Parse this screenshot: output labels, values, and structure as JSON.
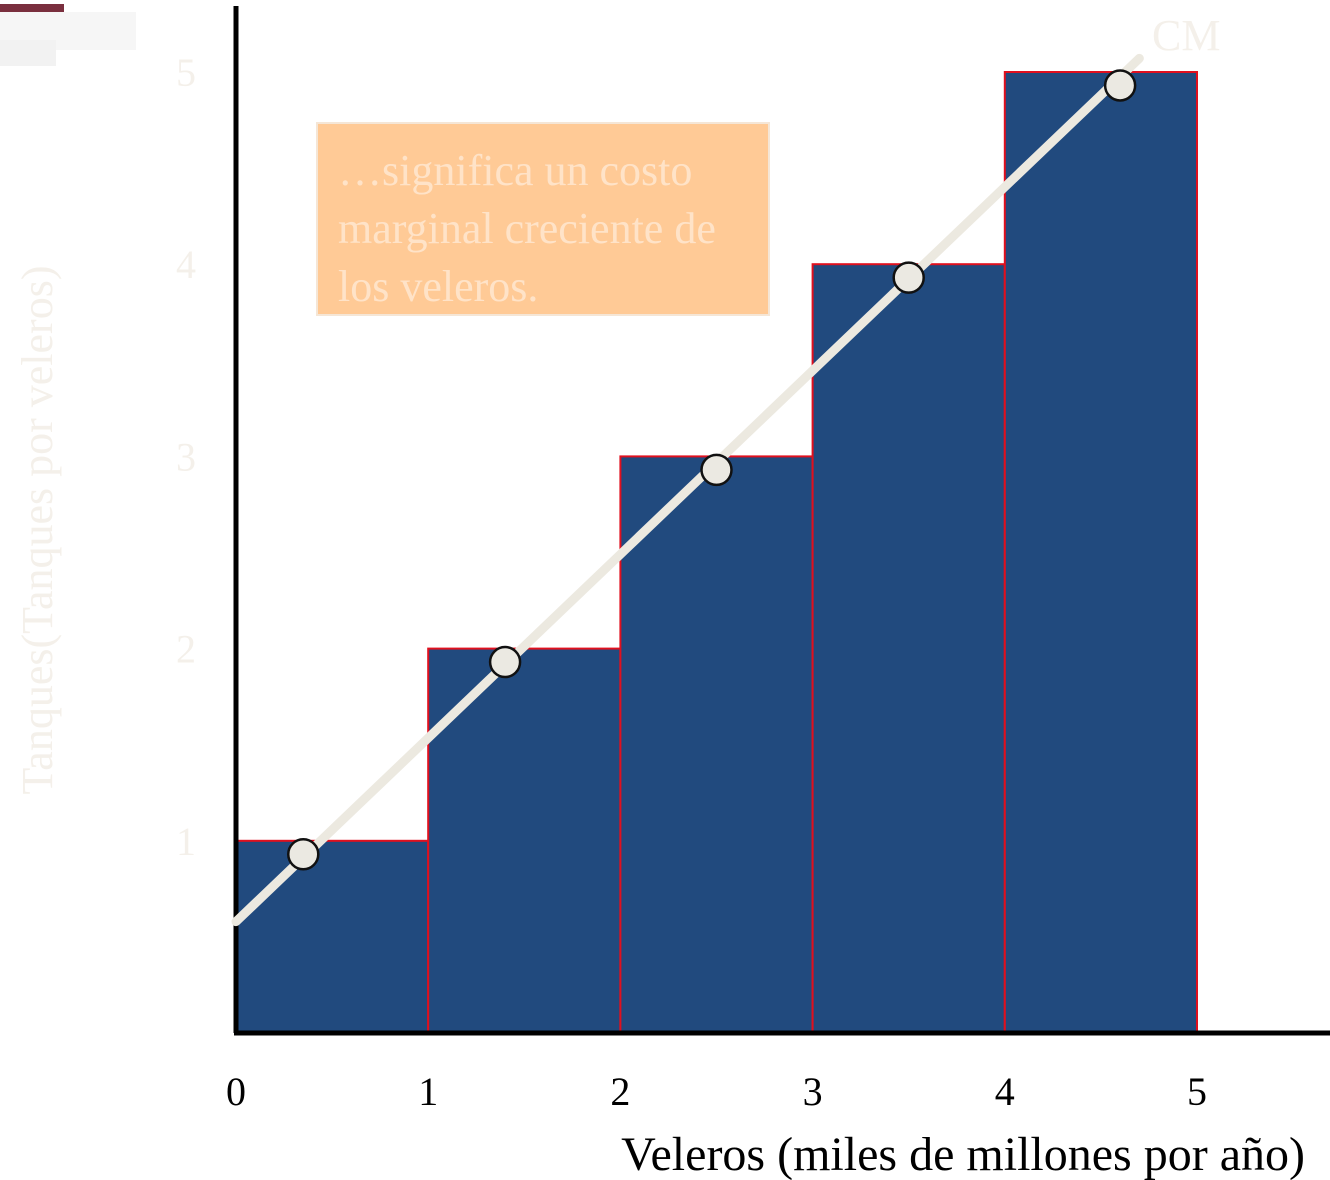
{
  "colors": {
    "bar_fill": "#214a7e",
    "bar_edge": "#e0101e",
    "curve": "#ece9e0",
    "point_fill": "#ebe9e2",
    "point_edge": "#111111",
    "axis": "#000000",
    "faded_text": "#f4f0ea",
    "annotation_bg": "#ffca96",
    "annotation_text": "#ffe3c8",
    "corner_mark": "#7a2f3e"
  },
  "annotation": {
    "text": "…significa un costo marginal creciente de los veleros."
  },
  "chart_data": {
    "type": "bar",
    "title": "",
    "xlabel": "Veleros (miles de millones por año)",
    "ylabel": "Tanques(Tanques por veleros)",
    "xlim": [
      0,
      5.7
    ],
    "ylim": [
      0,
      5.3
    ],
    "x_ticks": [
      "0",
      "1",
      "2",
      "3",
      "4",
      "5"
    ],
    "y_ticks": [
      "1",
      "2",
      "3",
      "4",
      "5"
    ],
    "bars": [
      {
        "x_start": 0,
        "x_end": 1,
        "value": 1
      },
      {
        "x_start": 1,
        "x_end": 2,
        "value": 2
      },
      {
        "x_start": 2,
        "x_end": 3,
        "value": 3
      },
      {
        "x_start": 3,
        "x_end": 4,
        "value": 4
      },
      {
        "x_start": 4,
        "x_end": 5,
        "value": 5
      }
    ],
    "curve_label": "CM",
    "curve": {
      "x": [
        0,
        4.7
      ],
      "y": [
        0.6,
        5.05
      ]
    },
    "points": {
      "x": [
        0.35,
        1.4,
        2.5,
        3.5,
        4.6
      ],
      "y": [
        0.93,
        1.93,
        2.93,
        3.93,
        4.93
      ]
    },
    "grid": false,
    "legend": "none"
  }
}
